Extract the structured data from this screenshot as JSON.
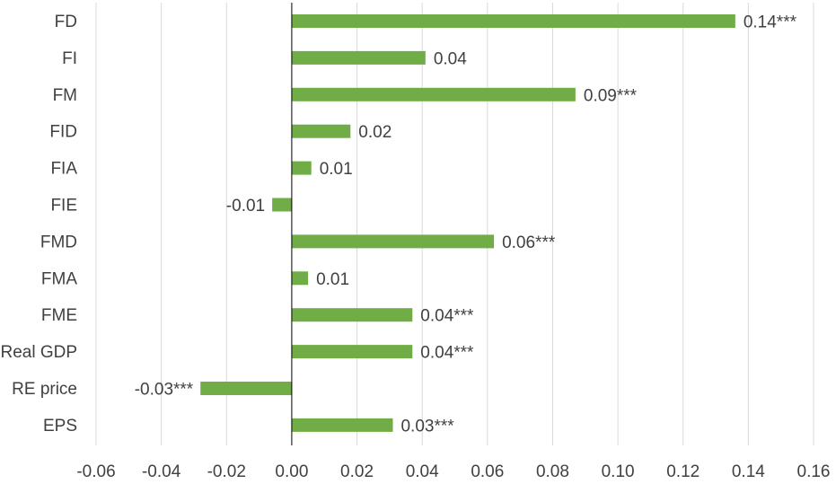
{
  "chart_data": {
    "type": "bar",
    "orientation": "horizontal",
    "title": "",
    "xlabel": "",
    "ylabel": "",
    "categories": [
      "FD",
      "FI",
      "FM",
      "FID",
      "FIA",
      "FIE",
      "FMD",
      "FMA",
      "FME",
      "Real GDP",
      "RE price",
      "EPS"
    ],
    "values": [
      0.136,
      0.041,
      0.087,
      0.018,
      0.006,
      -0.006,
      0.062,
      0.005,
      0.037,
      0.037,
      -0.028,
      0.031
    ],
    "data_labels": [
      "0.14***",
      "0.04",
      "0.09***",
      "0.02",
      "0.01",
      "-0.01",
      "0.06***",
      "0.01",
      "0.04***",
      "0.04***",
      "-0.03***",
      "0.03***"
    ],
    "xlim": [
      -0.06,
      0.16
    ],
    "x_ticks": [
      "-0.06",
      "-0.04",
      "-0.02",
      "0.00",
      "0.02",
      "0.04",
      "0.06",
      "0.08",
      "0.10",
      "0.12",
      "0.14",
      "0.16"
    ],
    "grid": "vertical",
    "legend": "none",
    "bar_color": "#70ad47"
  }
}
